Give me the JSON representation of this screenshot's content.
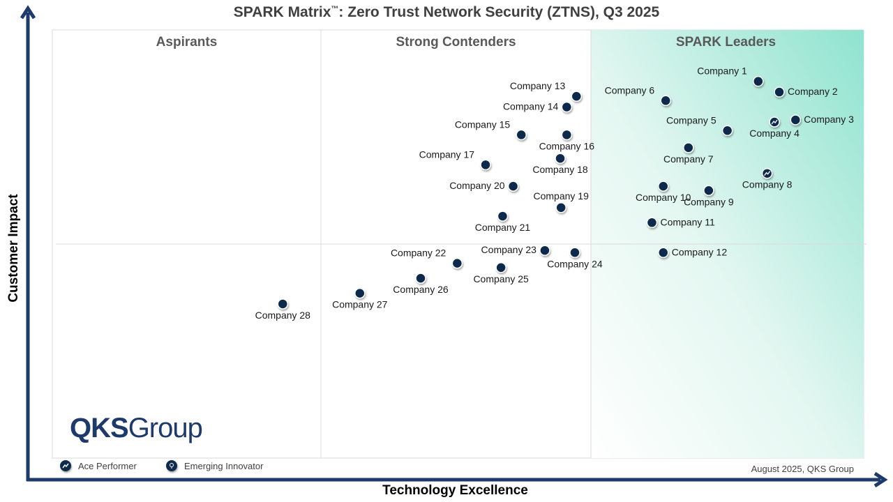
{
  "title": {
    "main": "SPARK Matrix",
    "tm": "™",
    "rest": ": Zero Trust Network Security (ZTNS), Q3 2025"
  },
  "quadrants": {
    "aspirants": "Aspirants",
    "strong_contenders": "Strong Contenders",
    "spark_leaders": "SPARK Leaders"
  },
  "axes": {
    "x_label": "Technology Excellence",
    "y_label": "Customer Impact"
  },
  "legend": {
    "ace_performer": "Ace Performer",
    "emerging_innovator": "Emerging Innovator"
  },
  "footnote": "August 2025, QKS Group",
  "logo": {
    "bold": "QKS",
    "rest": "Group"
  },
  "colors": {
    "marker": "#0e2a4d",
    "axis": "#1d3a6b",
    "leader_gradient": "#8fe3cf"
  },
  "chart_data": {
    "type": "scatter",
    "title": "SPARK Matrix™: Zero Trust Network Security (ZTNS), Q3 2025",
    "xlabel": "Technology Excellence",
    "ylabel": "Customer Impact",
    "xlim": [
      0,
      100
    ],
    "ylim": [
      0,
      100
    ],
    "quadrant_boundaries": {
      "x": [
        33.3,
        66.7
      ],
      "y": 50
    },
    "points": [
      {
        "name": "Company 1",
        "x": 87.0,
        "y": 88.0,
        "marker": "standard",
        "label_pos": "top-left"
      },
      {
        "name": "Company 2",
        "x": 89.6,
        "y": 85.5,
        "marker": "standard",
        "label_pos": "right"
      },
      {
        "name": "Company 3",
        "x": 91.6,
        "y": 79.0,
        "marker": "standard",
        "label_pos": "right"
      },
      {
        "name": "Company 4",
        "x": 89.0,
        "y": 78.5,
        "marker": "ace",
        "label_pos": "bottom"
      },
      {
        "name": "Company 5",
        "x": 83.2,
        "y": 76.5,
        "marker": "standard",
        "label_pos": "top-left"
      },
      {
        "name": "Company 6",
        "x": 75.6,
        "y": 83.5,
        "marker": "standard",
        "label_pos": "top-left"
      },
      {
        "name": "Company 7",
        "x": 78.4,
        "y": 72.5,
        "marker": "standard",
        "label_pos": "bottom"
      },
      {
        "name": "Company 8",
        "x": 88.1,
        "y": 66.5,
        "marker": "ace",
        "label_pos": "bottom"
      },
      {
        "name": "Company 9",
        "x": 80.9,
        "y": 62.5,
        "marker": "standard",
        "label_pos": "bottom"
      },
      {
        "name": "Company 10",
        "x": 75.3,
        "y": 63.5,
        "marker": "standard",
        "label_pos": "bottom"
      },
      {
        "name": "Company 11",
        "x": 73.9,
        "y": 55.0,
        "marker": "standard",
        "label_pos": "right"
      },
      {
        "name": "Company 12",
        "x": 75.3,
        "y": 48.0,
        "marker": "standard",
        "label_pos": "right"
      },
      {
        "name": "Company 13",
        "x": 64.6,
        "y": 84.5,
        "marker": "standard",
        "label_pos": "top-left"
      },
      {
        "name": "Company 14",
        "x": 63.4,
        "y": 82.0,
        "marker": "standard",
        "label_pos": "left"
      },
      {
        "name": "Company 15",
        "x": 57.8,
        "y": 75.5,
        "marker": "standard",
        "label_pos": "top-left"
      },
      {
        "name": "Company 16",
        "x": 63.4,
        "y": 75.5,
        "marker": "standard",
        "label_pos": "bottom"
      },
      {
        "name": "Company 17",
        "x": 53.4,
        "y": 68.5,
        "marker": "standard",
        "label_pos": "top-left"
      },
      {
        "name": "Company 18",
        "x": 62.6,
        "y": 70.0,
        "marker": "standard",
        "label_pos": "bottom"
      },
      {
        "name": "Company 19",
        "x": 62.7,
        "y": 58.5,
        "marker": "standard",
        "label_pos": "top"
      },
      {
        "name": "Company 20",
        "x": 56.8,
        "y": 63.5,
        "marker": "standard",
        "label_pos": "left"
      },
      {
        "name": "Company 21",
        "x": 55.5,
        "y": 56.5,
        "marker": "standard",
        "label_pos": "bottom"
      },
      {
        "name": "Company 22",
        "x": 49.9,
        "y": 45.5,
        "marker": "standard",
        "label_pos": "top-left"
      },
      {
        "name": "Company 23",
        "x": 60.7,
        "y": 48.5,
        "marker": "standard",
        "label_pos": "left"
      },
      {
        "name": "Company 24",
        "x": 64.4,
        "y": 48.0,
        "marker": "standard",
        "label_pos": "bottom"
      },
      {
        "name": "Company 25",
        "x": 55.3,
        "y": 44.5,
        "marker": "standard",
        "label_pos": "bottom"
      },
      {
        "name": "Company 26",
        "x": 45.4,
        "y": 42.0,
        "marker": "standard",
        "label_pos": "bottom"
      },
      {
        "name": "Company 27",
        "x": 37.9,
        "y": 38.5,
        "marker": "standard",
        "label_pos": "bottom"
      },
      {
        "name": "Company 28",
        "x": 28.4,
        "y": 36.0,
        "marker": "standard",
        "label_pos": "bottom"
      }
    ]
  }
}
